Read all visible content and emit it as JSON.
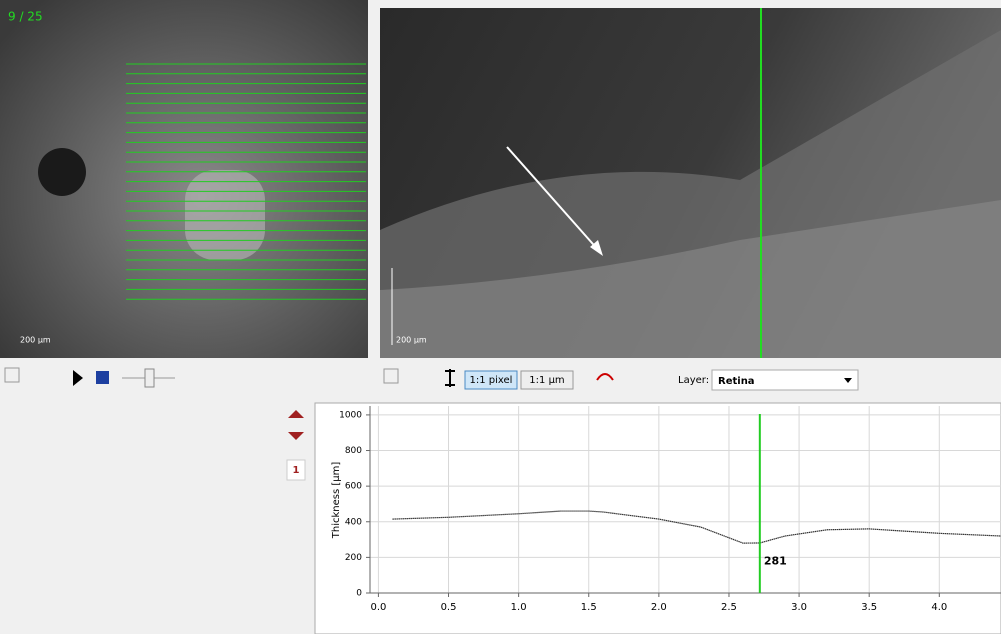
{
  "header": {
    "scan_counter": "9 / 25"
  },
  "images": {
    "fundus_scale": "200 µm",
    "oct_scale": "200 µm"
  },
  "toolbar": {
    "zoom_pixel": "1:1 pixel",
    "zoom_um": "1:1 µm",
    "layer_label": "Layer:",
    "layer_value": "Retina"
  },
  "page_index": "1",
  "chart_data": {
    "type": "line",
    "y_label": "Thickness [µm]",
    "x": [
      0.1,
      0.5,
      1.0,
      1.3,
      1.5,
      1.6,
      2.0,
      2.3,
      2.5,
      2.6,
      2.72,
      2.9,
      3.2,
      3.5,
      3.8,
      4.0,
      4.44
    ],
    "series": [
      {
        "name": "Retina",
        "color": "#333333",
        "values": [
          415,
          425,
          445,
          460,
          460,
          455,
          415,
          370,
          310,
          280,
          281,
          320,
          355,
          360,
          345,
          335,
          320
        ]
      }
    ],
    "xlim": [
      -0.06,
      4.44
    ],
    "ylim": [
      0,
      1050
    ],
    "xticks": [
      {
        "value": 0,
        "label": "0.0"
      },
      0.5,
      {
        "value": 1,
        "label": "1.0"
      },
      1.5,
      {
        "value": 2,
        "label": "2.0"
      },
      2.5,
      {
        "value": 3,
        "label": "3.0"
      },
      3.5,
      {
        "value": 4,
        "label": "4.0"
      }
    ],
    "yticks": [
      0,
      200,
      400,
      600,
      800,
      1000
    ],
    "grid": true,
    "marker_color": "#22cc22",
    "marker_x": 2.72,
    "marker_value": 281
  }
}
